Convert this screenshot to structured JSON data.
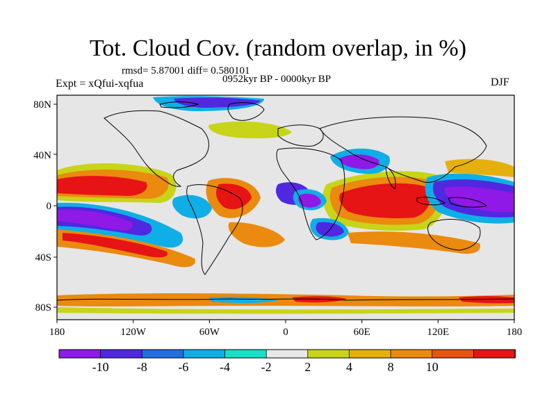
{
  "title": "Tot. Cloud Cov. (random overlap, in %)",
  "stats": "rmsd= 5.87001 diff= 0.580101",
  "experiment": "Expt = xQfui-xqfua",
  "period": "0952kyr BP - 0000kyr BP",
  "season": "DJF",
  "axes": {
    "x_ticks": [
      "180",
      "120W",
      "60W",
      "0",
      "60E",
      "120E",
      "180"
    ],
    "y_ticks": [
      "80N",
      "40N",
      "0",
      "40S",
      "80S"
    ]
  },
  "colorbar": {
    "colors": [
      "#8f19e6",
      "#5028e0",
      "#1f6fe0",
      "#10aee6",
      "#18e0c8",
      "#e8e8e8",
      "#c8d418",
      "#e6b00c",
      "#ea8a0e",
      "#e65410",
      "#e61414"
    ],
    "labels": [
      "-10",
      "-8",
      "-6",
      "-4",
      "-2",
      "2",
      "4",
      "8",
      "10"
    ]
  },
  "map_colors": {
    "background": "#e6e6e6",
    "coastline": "#000000"
  }
}
